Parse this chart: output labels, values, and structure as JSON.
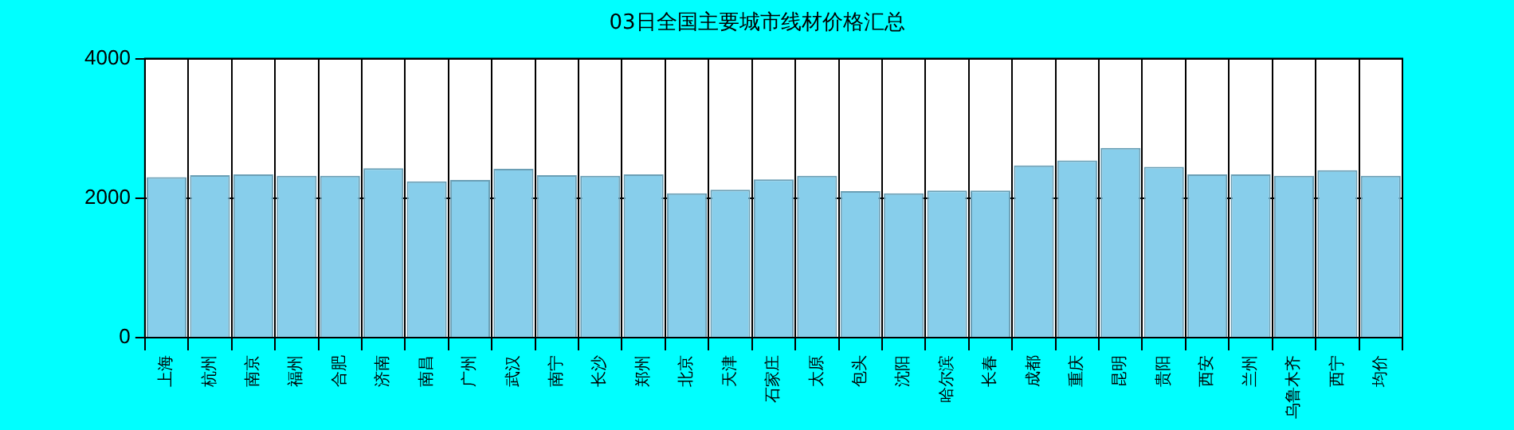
{
  "chart_data": {
    "type": "bar",
    "title": "03日全国主要城市线材价格汇总",
    "categories": [
      "上海",
      "杭州",
      "南京",
      "福州",
      "合肥",
      "济南",
      "南昌",
      "广州",
      "武汉",
      "南宁",
      "长沙",
      "郑州",
      "北京",
      "天津",
      "石家庄",
      "太原",
      "包头",
      "沈阳",
      "哈尔滨",
      "长春",
      "成都",
      "重庆",
      "昆明",
      "贵阳",
      "西安",
      "兰州",
      "乌鲁木齐",
      "西宁",
      "均价"
    ],
    "values": [
      2300,
      2330,
      2340,
      2320,
      2320,
      2430,
      2240,
      2260,
      2420,
      2330,
      2320,
      2340,
      2070,
      2120,
      2270,
      2320,
      2100,
      2070,
      2110,
      2110,
      2470,
      2540,
      2720,
      2450,
      2340,
      2340,
      2320,
      2400,
      2320
    ],
    "color": "#87ceeb",
    "ylim": [
      0,
      4000
    ],
    "yticks": [
      0,
      2000,
      4000
    ],
    "grid": true
  }
}
